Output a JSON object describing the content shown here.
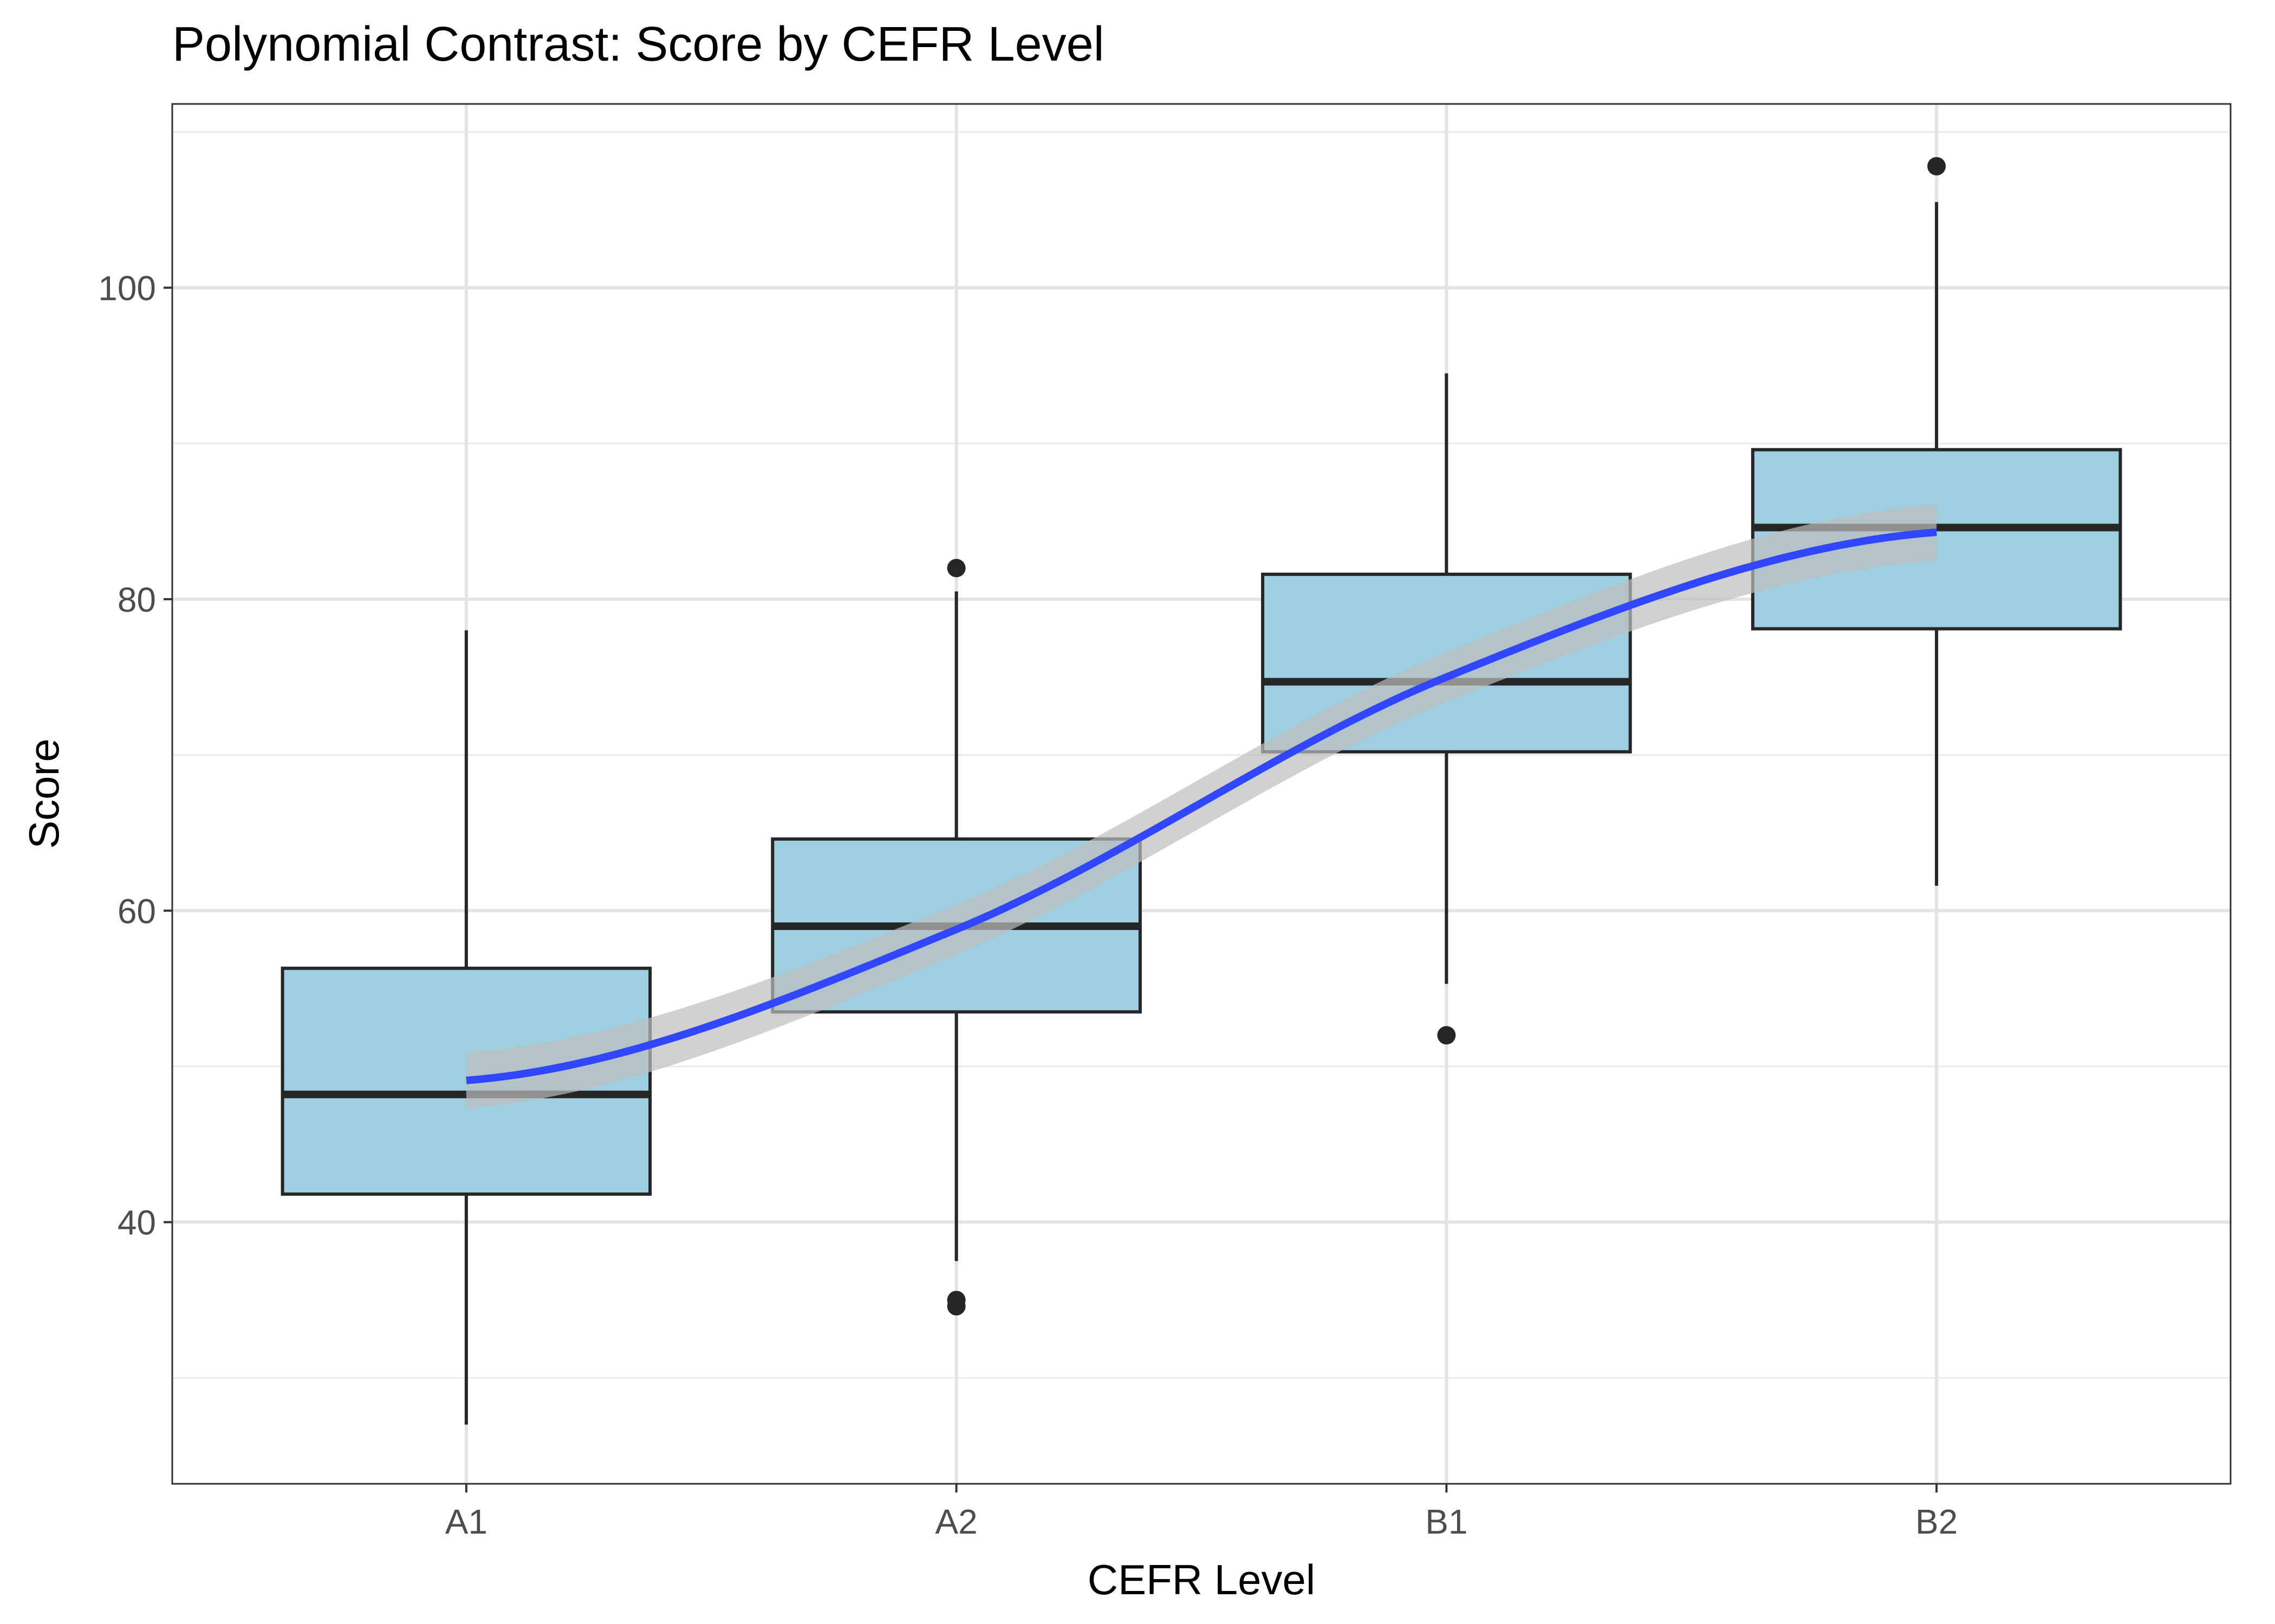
{
  "chart_data": {
    "type": "box",
    "title": "Polynomial Contrast: Score by CEFR Level",
    "xlabel": "CEFR Level",
    "ylabel": "Score",
    "categories": [
      "A1",
      "A2",
      "B1",
      "B2"
    ],
    "ylim": [
      23.2,
      111.8
    ],
    "yticks": [
      40,
      60,
      80,
      100
    ],
    "grid": true,
    "legend": "none",
    "box_fill": "#9ECFE0",
    "box_stroke": "#262626",
    "boxes": [
      {
        "category": "A1",
        "whisker_low": 27.0,
        "q1": 41.8,
        "median": 48.2,
        "q3": 56.3,
        "whisker_high": 78.0,
        "outliers": []
      },
      {
        "category": "A2",
        "whisker_low": 37.5,
        "q1": 53.5,
        "median": 59.0,
        "q3": 64.6,
        "whisker_high": 80.5,
        "outliers": [
          82.0,
          35.0,
          34.6
        ]
      },
      {
        "category": "B1",
        "whisker_low": 55.3,
        "q1": 70.2,
        "median": 74.7,
        "q3": 81.6,
        "whisker_high": 94.5,
        "outliers": [
          52.0
        ]
      },
      {
        "category": "B2",
        "whisker_low": 61.6,
        "q1": 78.1,
        "median": 84.6,
        "q3": 89.6,
        "whisker_high": 105.5,
        "outliers": [
          107.8
        ]
      }
    ],
    "trend": {
      "type": "smooth",
      "color": "#3046FF",
      "band_color": "#BDBDBD",
      "x": [
        1,
        2,
        3,
        4
      ],
      "y": [
        49.1,
        58.8,
        75.0,
        84.3
      ],
      "se": [
        1.8,
        1.6,
        1.6,
        1.8
      ]
    }
  }
}
